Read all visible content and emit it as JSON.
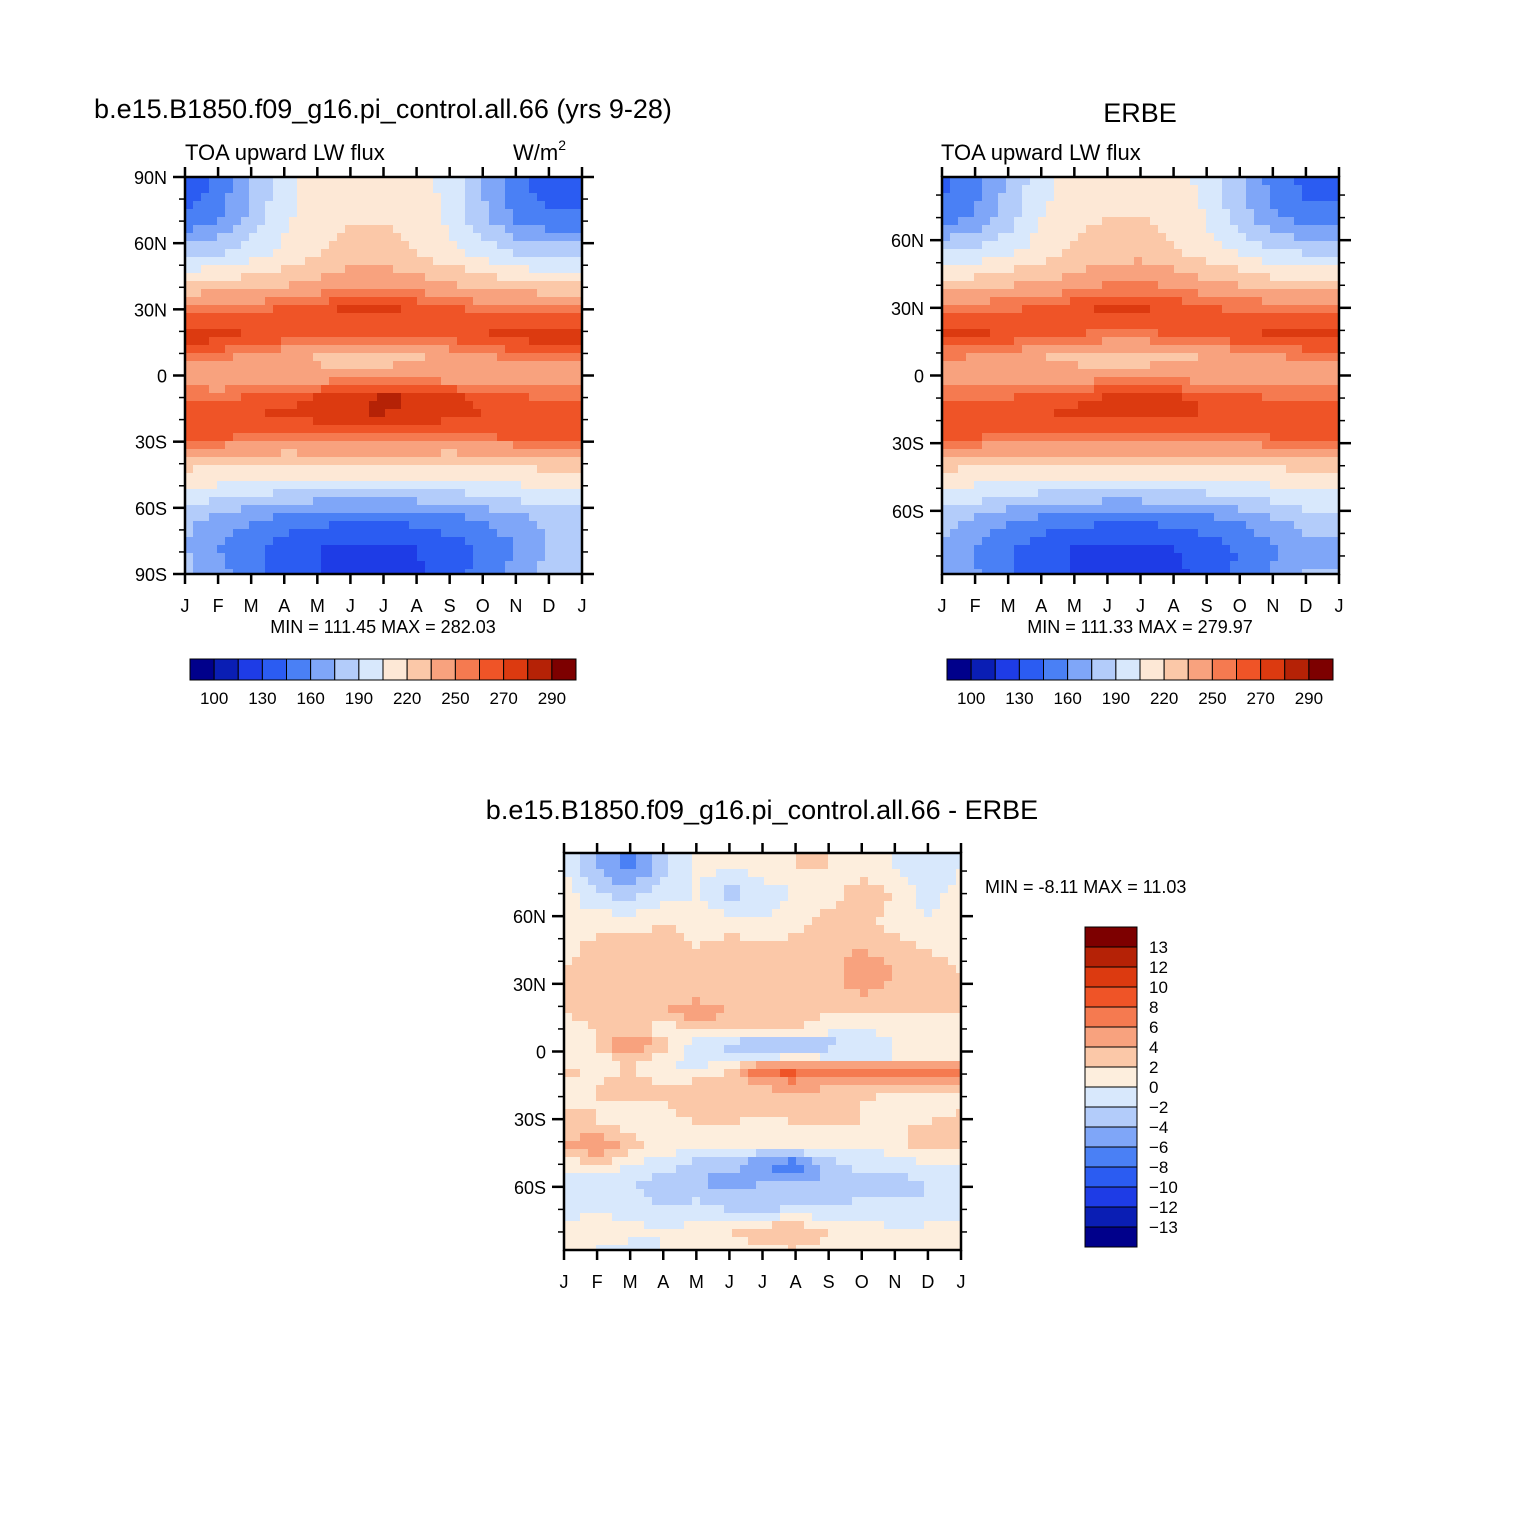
{
  "chart_data": [
    {
      "type": "heatmap",
      "title": "b.e15.B1850.f09_g16.pi_control.all.66 (yrs 9-28)",
      "subtitle": "TOA upward LW flux",
      "units": "W/m",
      "units_sup": "2",
      "x_ticks": [
        "J",
        "F",
        "M",
        "A",
        "M",
        "J",
        "J",
        "A",
        "S",
        "O",
        "N",
        "D",
        "J"
      ],
      "y_ticks": [
        "90N",
        "60N",
        "30N",
        "0",
        "30S",
        "60S",
        "90S"
      ],
      "y_values": [
        90,
        60,
        30,
        0,
        -30,
        -60,
        -90
      ],
      "ylim": [
        -90,
        90
      ],
      "stats": "MIN = 111.45 MAX = 282.03",
      "min": 111.45,
      "max": 282.03,
      "colorbar_labels": [
        "100",
        "130",
        "160",
        "190",
        "220",
        "250",
        "270",
        "290"
      ],
      "rows_lat": [
        85,
        70,
        55,
        42,
        30,
        18,
        8,
        0,
        -10,
        -18,
        -28,
        -40,
        -52,
        -65,
        -78,
        -88
      ],
      "z": [
        [
          135,
          150,
          175,
          200,
          212,
          217,
          217,
          212,
          200,
          175,
          150,
          135,
          135
        ],
        [
          150,
          160,
          180,
          202,
          215,
          220,
          220,
          215,
          202,
          180,
          160,
          150,
          150
        ],
        [
          185,
          190,
          200,
          210,
          220,
          226,
          226,
          220,
          210,
          200,
          190,
          185,
          185
        ],
        [
          220,
          222,
          228,
          232,
          238,
          246,
          248,
          242,
          235,
          228,
          222,
          220,
          220
        ],
        [
          258,
          258,
          258,
          262,
          268,
          272,
          272,
          268,
          262,
          258,
          258,
          258,
          258
        ],
        [
          276,
          275,
          270,
          265,
          262,
          260,
          260,
          262,
          265,
          270,
          275,
          276,
          276
        ],
        [
          255,
          252,
          246,
          240,
          232,
          226,
          226,
          232,
          240,
          246,
          252,
          255,
          255
        ],
        [
          242,
          236,
          238,
          238,
          240,
          244,
          246,
          244,
          240,
          238,
          238,
          242,
          242
        ],
        [
          258,
          258,
          262,
          266,
          272,
          278,
          282,
          280,
          274,
          266,
          262,
          258,
          258
        ],
        [
          268,
          268,
          270,
          272,
          276,
          280,
          280,
          278,
          274,
          270,
          268,
          268,
          268
        ],
        [
          266,
          262,
          258,
          256,
          256,
          256,
          256,
          256,
          256,
          258,
          262,
          266,
          266
        ],
        [
          225,
          222,
          222,
          220,
          222,
          224,
          224,
          222,
          220,
          222,
          222,
          225,
          225
        ],
        [
          205,
          200,
          196,
          192,
          190,
          188,
          188,
          190,
          192,
          196,
          200,
          205,
          205
        ],
        [
          180,
          170,
          162,
          154,
          150,
          148,
          148,
          150,
          154,
          162,
          170,
          180,
          180
        ],
        [
          175,
          160,
          148,
          138,
          130,
          128,
          126,
          130,
          138,
          148,
          160,
          175,
          175
        ],
        [
          180,
          165,
          150,
          140,
          130,
          126,
          124,
          128,
          138,
          150,
          165,
          180,
          180
        ]
      ]
    },
    {
      "type": "heatmap",
      "title": "ERBE",
      "subtitle": "TOA upward LW flux",
      "x_ticks": [
        "J",
        "F",
        "M",
        "A",
        "M",
        "J",
        "J",
        "A",
        "S",
        "O",
        "N",
        "D",
        "J"
      ],
      "y_ticks": [
        "60N",
        "30N",
        "0",
        "30S",
        "60S"
      ],
      "y_values": [
        60,
        30,
        0,
        -30,
        -60
      ],
      "ylim": [
        -88,
        88
      ],
      "stats": "MIN = 111.33 MAX = 279.97",
      "min": 111.33,
      "max": 279.97,
      "colorbar_labels": [
        "100",
        "130",
        "160",
        "190",
        "220",
        "250",
        "270",
        "290"
      ],
      "rows_lat": [
        85,
        70,
        55,
        42,
        30,
        18,
        8,
        0,
        -10,
        -18,
        -28,
        -40,
        -52,
        -65,
        -78,
        -88
      ],
      "z": [
        [
          140,
          155,
          178,
          200,
          212,
          217,
          217,
          212,
          200,
          178,
          155,
          140,
          140
        ],
        [
          152,
          162,
          182,
          204,
          216,
          220,
          220,
          216,
          204,
          182,
          162,
          152,
          152
        ],
        [
          188,
          192,
          202,
          212,
          222,
          228,
          228,
          222,
          212,
          202,
          192,
          188,
          188
        ],
        [
          222,
          224,
          230,
          234,
          240,
          248,
          250,
          244,
          236,
          230,
          224,
          222,
          222
        ],
        [
          258,
          258,
          258,
          262,
          268,
          272,
          272,
          268,
          262,
          258,
          258,
          258,
          258
        ],
        [
          274,
          273,
          268,
          264,
          260,
          258,
          258,
          260,
          264,
          268,
          273,
          274,
          274
        ],
        [
          252,
          248,
          242,
          236,
          230,
          226,
          226,
          230,
          236,
          242,
          248,
          252,
          252
        ],
        [
          245,
          240,
          240,
          240,
          242,
          245,
          246,
          245,
          242,
          240,
          240,
          245,
          245
        ],
        [
          258,
          258,
          260,
          264,
          268,
          272,
          274,
          272,
          268,
          264,
          260,
          258,
          258
        ],
        [
          266,
          266,
          268,
          270,
          272,
          274,
          274,
          272,
          270,
          268,
          266,
          266,
          266
        ],
        [
          264,
          260,
          256,
          254,
          254,
          254,
          254,
          254,
          254,
          256,
          260,
          264,
          264
        ],
        [
          224,
          221,
          220,
          219,
          220,
          222,
          222,
          220,
          219,
          220,
          221,
          224,
          224
        ],
        [
          204,
          199,
          194,
          190,
          188,
          186,
          186,
          188,
          190,
          194,
          199,
          204,
          204
        ],
        [
          180,
          170,
          160,
          152,
          148,
          146,
          146,
          148,
          152,
          160,
          170,
          180,
          180
        ],
        [
          172,
          158,
          146,
          136,
          128,
          126,
          124,
          128,
          136,
          146,
          158,
          172,
          172
        ],
        [
          176,
          162,
          148,
          138,
          128,
          124,
          122,
          126,
          136,
          148,
          162,
          176,
          176
        ]
      ]
    },
    {
      "type": "heatmap",
      "title": "b.e15.B1850.f09_g16.pi_control.all.66 - ERBE",
      "x_ticks": [
        "J",
        "F",
        "M",
        "A",
        "M",
        "J",
        "J",
        "A",
        "S",
        "O",
        "N",
        "D",
        "J"
      ],
      "y_ticks": [
        "60N",
        "30N",
        "0",
        "30S",
        "60S"
      ],
      "y_values": [
        60,
        30,
        0,
        -30,
        -60
      ],
      "ylim": [
        -88,
        88
      ],
      "stats": "MIN = -8.11 MAX = 11.03",
      "min": -8.11,
      "max": 11.03,
      "colorbar_labels": [
        "13",
        "12",
        "10",
        "8",
        "6",
        "4",
        "2",
        "0",
        "-2",
        "-4",
        "-6",
        "-8",
        "-10",
        "-12",
        "-13"
      ],
      "rows_lat": [
        82,
        70,
        58,
        45,
        36,
        25,
        18,
        10,
        3,
        -3,
        -8,
        -15,
        -22,
        -32,
        -42,
        -50,
        -58,
        -70,
        -80,
        -88
      ],
      "z": [
        [
          0,
          -4,
          -7,
          -3,
          1,
          0,
          1,
          2,
          2,
          1,
          0,
          -2,
          0
        ],
        [
          1,
          -2,
          -3,
          -1,
          0,
          -3,
          -1,
          0,
          1,
          3,
          2,
          -1,
          1
        ],
        [
          1,
          1,
          1,
          2,
          1,
          1,
          0,
          1,
          3,
          3,
          1,
          0,
          1
        ],
        [
          1,
          3,
          3,
          3,
          2,
          3,
          3,
          3,
          3,
          4,
          3,
          2,
          1
        ],
        [
          2,
          3,
          4,
          2,
          3,
          3,
          3,
          3,
          3,
          6,
          4,
          3,
          2
        ],
        [
          3,
          3,
          3,
          3,
          3,
          3,
          3,
          3,
          3,
          4,
          3,
          3,
          3
        ],
        [
          2,
          3,
          4,
          4,
          6,
          4,
          3,
          3,
          2,
          2,
          2,
          2,
          2
        ],
        [
          1,
          2,
          2,
          1,
          2,
          2,
          2,
          2,
          1,
          0,
          1,
          0,
          1
        ],
        [
          0,
          2,
          7,
          3,
          -1,
          -3,
          -4,
          -4,
          -3,
          -2,
          0,
          0,
          0
        ],
        [
          0,
          1,
          3,
          1,
          -1,
          -1,
          0,
          1,
          0,
          0,
          0,
          0,
          0
        ],
        [
          3,
          1,
          2,
          0,
          0,
          2,
          9,
          9,
          8,
          8,
          8,
          8,
          8
        ],
        [
          1,
          2,
          3,
          2,
          3,
          3,
          4,
          5,
          4,
          4,
          3,
          3,
          3
        ],
        [
          1,
          2,
          2,
          2,
          4,
          4,
          3,
          3,
          3,
          2,
          1,
          1,
          1
        ],
        [
          3,
          2,
          1,
          1,
          2,
          2,
          1,
          2,
          2,
          2,
          2,
          2,
          3
        ],
        [
          4,
          6,
          3,
          1,
          1,
          0,
          0,
          1,
          0,
          0,
          1,
          3,
          3
        ],
        [
          1,
          2,
          0,
          -1,
          -3,
          -3,
          -6,
          -8,
          -3,
          -1,
          -1,
          0,
          0
        ],
        [
          -1,
          -2,
          -2,
          -3,
          -4,
          -5,
          -4,
          -4,
          -4,
          -3,
          -3,
          -2,
          -1
        ],
        [
          -1,
          0,
          -1,
          -2,
          -1,
          -2,
          -3,
          -1,
          -2,
          -1,
          -1,
          -2,
          -1
        ],
        [
          1,
          1,
          1,
          0,
          1,
          2,
          4,
          4,
          2,
          1,
          0,
          1,
          1
        ],
        [
          0,
          0,
          -1,
          0,
          0,
          0,
          1,
          2,
          1,
          0,
          0,
          0,
          0
        ]
      ]
    }
  ]
}
